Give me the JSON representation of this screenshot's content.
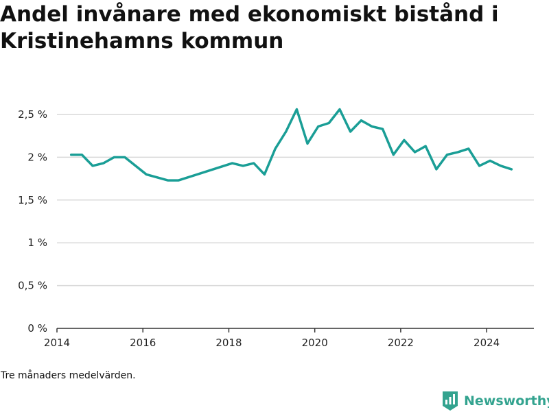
{
  "title": "Andel invånare med ekonomiskt bistånd i Kristinehamns kommun",
  "note": "Tre månaders medelvärden.",
  "brand": {
    "name": "Newsworthy",
    "icon": "newsworthy-logo-icon",
    "color": "#33a38f"
  },
  "chart_data": {
    "type": "line",
    "title": "Andel invånare med ekonomiskt bistånd i Kristinehamns kommun",
    "xlabel": "",
    "ylabel": "",
    "xlim": [
      2014.0,
      2025.1
    ],
    "ylim": [
      0,
      2.5
    ],
    "x_ticks": [
      {
        "value": 2014,
        "label": "2014"
      },
      {
        "value": 2016,
        "label": "2016"
      },
      {
        "value": 2018,
        "label": "2018"
      },
      {
        "value": 2020,
        "label": "2020"
      },
      {
        "value": 2022,
        "label": "2022"
      },
      {
        "value": 2024,
        "label": "2024"
      }
    ],
    "y_ticks": [
      {
        "value": 0,
        "label": "0 %"
      },
      {
        "value": 0.5,
        "label": "0,5 %"
      },
      {
        "value": 1,
        "label": "1 %"
      },
      {
        "value": 1.5,
        "label": "1,5 %"
      },
      {
        "value": 2,
        "label": "2 %"
      },
      {
        "value": 2.5,
        "label": "2,5 %"
      }
    ],
    "grid": true,
    "line_color": "#1a9e96",
    "series": [
      {
        "values": [
          {
            "x": 2014.33,
            "y": 2.03
          },
          {
            "x": 2014.58,
            "y": 2.03
          },
          {
            "x": 2014.83,
            "y": 1.9
          },
          {
            "x": 2015.08,
            "y": 1.93
          },
          {
            "x": 2015.33,
            "y": 2.0
          },
          {
            "x": 2015.58,
            "y": 2.0
          },
          {
            "x": 2016.08,
            "y": 1.8
          },
          {
            "x": 2016.58,
            "y": 1.73
          },
          {
            "x": 2016.83,
            "y": 1.73
          },
          {
            "x": 2018.08,
            "y": 1.93
          },
          {
            "x": 2018.33,
            "y": 1.9
          },
          {
            "x": 2018.58,
            "y": 1.93
          },
          {
            "x": 2018.83,
            "y": 1.8
          },
          {
            "x": 2019.08,
            "y": 2.1
          },
          {
            "x": 2019.33,
            "y": 2.3
          },
          {
            "x": 2019.58,
            "y": 2.56
          },
          {
            "x": 2019.83,
            "y": 2.16
          },
          {
            "x": 2020.08,
            "y": 2.36
          },
          {
            "x": 2020.33,
            "y": 2.4
          },
          {
            "x": 2020.58,
            "y": 2.56
          },
          {
            "x": 2020.83,
            "y": 2.3
          },
          {
            "x": 2021.08,
            "y": 2.43
          },
          {
            "x": 2021.33,
            "y": 2.36
          },
          {
            "x": 2021.58,
            "y": 2.33
          },
          {
            "x": 2021.83,
            "y": 2.03
          },
          {
            "x": 2022.08,
            "y": 2.2
          },
          {
            "x": 2022.33,
            "y": 2.06
          },
          {
            "x": 2022.58,
            "y": 2.13
          },
          {
            "x": 2022.83,
            "y": 1.86
          },
          {
            "x": 2023.08,
            "y": 2.03
          },
          {
            "x": 2023.33,
            "y": 2.06
          },
          {
            "x": 2023.58,
            "y": 2.1
          },
          {
            "x": 2023.83,
            "y": 1.9
          },
          {
            "x": 2024.08,
            "y": 1.96
          },
          {
            "x": 2024.33,
            "y": 1.9
          },
          {
            "x": 2024.58,
            "y": 1.86
          }
        ]
      }
    ]
  }
}
